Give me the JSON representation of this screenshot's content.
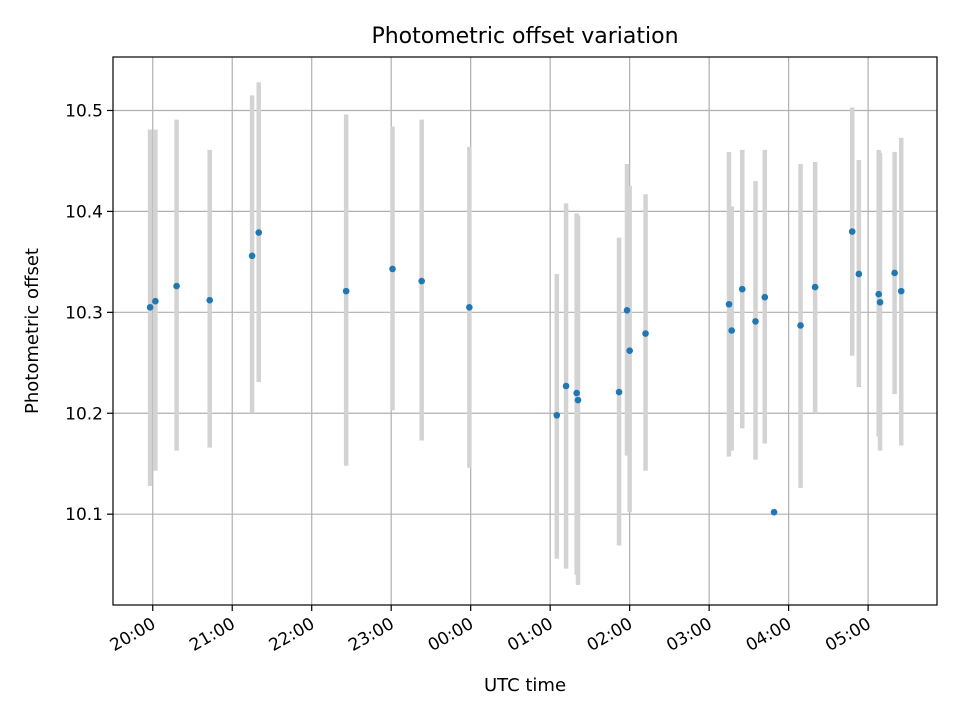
{
  "chart_data": {
    "type": "scatter",
    "title": "Photometric offset variation",
    "xlabel": "UTC time",
    "ylabel": "Photometric offset",
    "x_tick_labels": [
      "20:00",
      "21:00",
      "22:00",
      "23:00",
      "00:00",
      "01:00",
      "02:00",
      "03:00",
      "04:00",
      "05:00"
    ],
    "y_ticks": [
      10.1,
      10.2,
      10.3,
      10.4,
      10.5
    ],
    "y_tick_labels": [
      "10.1",
      "10.2",
      "10.3",
      "10.4",
      "10.5"
    ],
    "ylim": [
      10.01,
      10.553
    ],
    "xlim": [
      "19:30",
      "29:52"
    ],
    "grid": true,
    "point_color": "#1f77b4",
    "errorbar_color": "#d3d3d3",
    "points": [
      {
        "x": "19:58",
        "y": 10.305,
        "ylow": 10.128,
        "yhigh": 10.481
      },
      {
        "x": "20:02",
        "y": 10.311,
        "ylow": 10.143,
        "yhigh": 10.481
      },
      {
        "x": "20:18",
        "y": 10.326,
        "ylow": 10.163,
        "yhigh": 10.491
      },
      {
        "x": "20:43",
        "y": 10.312,
        "ylow": 10.166,
        "yhigh": 10.461
      },
      {
        "x": "21:15",
        "y": 10.356,
        "ylow": 10.2,
        "yhigh": 10.515
      },
      {
        "x": "21:20",
        "y": 10.379,
        "ylow": 10.231,
        "yhigh": 10.528
      },
      {
        "x": "22:26",
        "y": 10.321,
        "ylow": 10.148,
        "yhigh": 10.496
      },
      {
        "x": "23:01",
        "y": 10.343,
        "ylow": 10.203,
        "yhigh": 10.484
      },
      {
        "x": "23:23",
        "y": 10.331,
        "ylow": 10.173,
        "yhigh": 10.491
      },
      {
        "x": "23:59",
        "y": 10.305,
        "ylow": 10.146,
        "yhigh": 10.464
      },
      {
        "x": "25:05",
        "y": 10.198,
        "ylow": 10.056,
        "yhigh": 10.338
      },
      {
        "x": "25:12",
        "y": 10.227,
        "ylow": 10.046,
        "yhigh": 10.408
      },
      {
        "x": "25:20",
        "y": 10.22,
        "ylow": 10.04,
        "yhigh": 10.398
      },
      {
        "x": "25:21",
        "y": 10.213,
        "ylow": 10.03,
        "yhigh": 10.396
      },
      {
        "x": "25:52",
        "y": 10.221,
        "ylow": 10.069,
        "yhigh": 10.374
      },
      {
        "x": "25:58",
        "y": 10.302,
        "ylow": 10.158,
        "yhigh": 10.447
      },
      {
        "x": "26:00",
        "y": 10.262,
        "ylow": 10.102,
        "yhigh": 10.425
      },
      {
        "x": "26:12",
        "y": 10.279,
        "ylow": 10.143,
        "yhigh": 10.417
      },
      {
        "x": "27:15",
        "y": 10.308,
        "ylow": 10.157,
        "yhigh": 10.459
      },
      {
        "x": "27:17",
        "y": 10.282,
        "ylow": 10.163,
        "yhigh": 10.405
      },
      {
        "x": "27:25",
        "y": 10.323,
        "ylow": 10.185,
        "yhigh": 10.461
      },
      {
        "x": "27:35",
        "y": 10.291,
        "ylow": 10.154,
        "yhigh": 10.43
      },
      {
        "x": "27:42",
        "y": 10.315,
        "ylow": 10.17,
        "yhigh": 10.461
      },
      {
        "x": "27:49",
        "y": 10.102,
        "ylow": 10.102,
        "yhigh": 10.102
      },
      {
        "x": "28:09",
        "y": 10.287,
        "ylow": 10.126,
        "yhigh": 10.447
      },
      {
        "x": "28:20",
        "y": 10.325,
        "ylow": 10.2,
        "yhigh": 10.449
      },
      {
        "x": "28:48",
        "y": 10.38,
        "ylow": 10.257,
        "yhigh": 10.503
      },
      {
        "x": "28:53",
        "y": 10.338,
        "ylow": 10.226,
        "yhigh": 10.451
      },
      {
        "x": "29:08",
        "y": 10.318,
        "ylow": 10.177,
        "yhigh": 10.461
      },
      {
        "x": "29:09",
        "y": 10.31,
        "ylow": 10.163,
        "yhigh": 10.458
      },
      {
        "x": "29:20",
        "y": 10.339,
        "ylow": 10.219,
        "yhigh": 10.459
      },
      {
        "x": "29:25",
        "y": 10.321,
        "ylow": 10.168,
        "yhigh": 10.473
      }
    ]
  }
}
